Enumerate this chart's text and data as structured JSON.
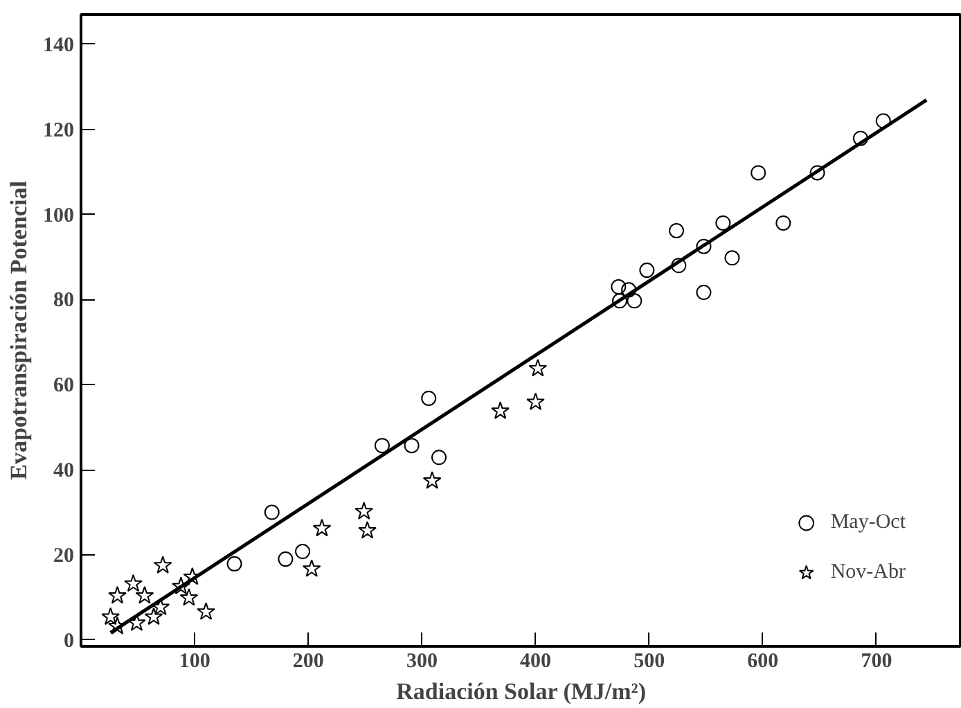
{
  "chart_data": {
    "type": "scatter",
    "xlabel": "Radiación Solar (MJ/m²)",
    "ylabel": "Evapotranspiración Potencial",
    "xlim": [
      0,
      775
    ],
    "ylim": [
      -1.5,
      147
    ],
    "xticks": [
      100,
      200,
      300,
      400,
      500,
      600,
      700
    ],
    "yticks": [
      0,
      20,
      40,
      60,
      80,
      100,
      120,
      140
    ],
    "grid": false,
    "legend": "bottom right",
    "series": [
      {
        "name": "May-Oct",
        "color": "#000000",
        "marker": "circle",
        "x": [
          135,
          168,
          180,
          195,
          265,
          291,
          306,
          315,
          473,
          474,
          482,
          487,
          498,
          524,
          526,
          548,
          548,
          565,
          573,
          596,
          618,
          648,
          686,
          706
        ],
        "values": [
          17.9,
          30,
          19,
          20.8,
          45.7,
          45.7,
          56.8,
          42.9,
          83,
          79.7,
          82.3,
          79.7,
          86.9,
          96.2,
          88,
          92.5,
          81.7,
          98,
          89.8,
          109.8,
          98,
          109.8,
          117.9,
          122
        ]
      },
      {
        "name": "Nov-Abr",
        "color": "#000000",
        "marker": "star",
        "x": [
          26,
          32,
          32,
          46,
          49,
          56,
          64,
          70,
          72,
          88,
          95,
          98,
          110,
          203,
          212,
          249,
          252,
          309,
          369,
          400,
          402
        ],
        "values": [
          5.4,
          10.4,
          3.2,
          13.2,
          4,
          10.4,
          5.4,
          7.7,
          17.5,
          12.6,
          9.9,
          14.8,
          6.6,
          16.7,
          26.2,
          30.2,
          25.7,
          37.4,
          53.8,
          55.9,
          63.8
        ]
      },
      {
        "type": "line",
        "color": "#000000",
        "x": [
          26,
          744
        ],
        "values": [
          1.7,
          126.9
        ]
      }
    ]
  }
}
